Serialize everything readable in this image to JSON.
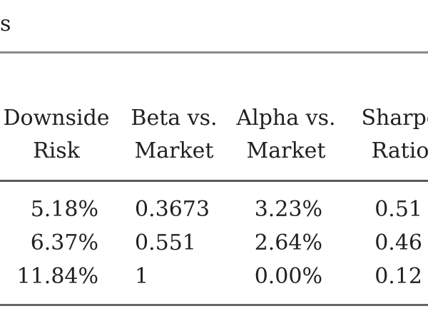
{
  "caption_fragment": "s",
  "table": {
    "headers": [
      [
        "Downside",
        "Risk"
      ],
      [
        "Beta vs.",
        "Market"
      ],
      [
        "Alpha vs.",
        "Market"
      ],
      [
        "Sharpe",
        "Ratio"
      ]
    ],
    "rows": [
      [
        "5.18%",
        "0.3673",
        "3.23%",
        "0.51"
      ],
      [
        "6.37%",
        "0.551",
        "2.64%",
        "0.46"
      ],
      [
        "11.84%",
        "1",
        "0.00%",
        "0.12"
      ]
    ]
  }
}
